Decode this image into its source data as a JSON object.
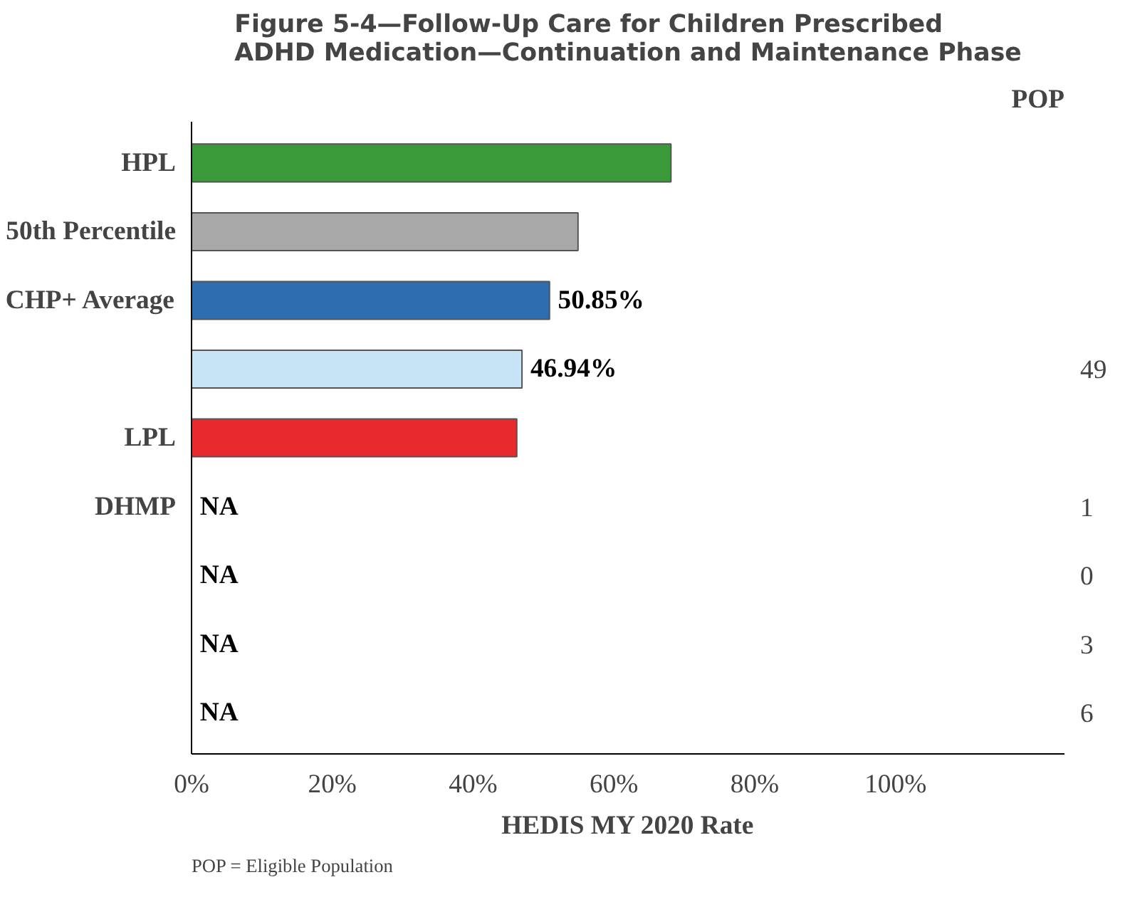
{
  "chart_data": {
    "type": "bar",
    "orientation": "horizontal",
    "title": "Figure 5-4—Follow-Up Care for Children Prescribed ADHD Medication—Continuation and Maintenance Phase",
    "xlabel": "HEDIS MY 2020 Rate",
    "y2label": "POP",
    "categories": [
      "HPL",
      "50th Percentile",
      "CHP+ Average",
      null,
      "LPL",
      "DHMP",
      null,
      null,
      null
    ],
    "y2_categories": [
      null,
      null,
      null,
      "49",
      null,
      "1",
      "0",
      "3",
      "6"
    ],
    "values": [
      68.1,
      54.9,
      50.85,
      46.94,
      46.2,
      null,
      null,
      null,
      null
    ],
    "colors": [
      "#3a9a3a",
      "#a8a8a8",
      "#2e6db0",
      "#c6e4f6",
      "#e8292e",
      "#000000",
      "#000000",
      "#000000",
      "#000000"
    ],
    "value_labels": [
      null,
      null,
      "50.85%",
      "46.94%",
      null,
      "NA",
      "NA",
      "NA",
      "NA"
    ],
    "xlim": [
      0,
      124
    ],
    "xticks": [
      {
        "value": 0,
        "label": "0%"
      },
      {
        "value": 20,
        "label": "20%"
      },
      {
        "value": 40,
        "label": "40%"
      },
      {
        "value": 60,
        "label": "60%"
      },
      {
        "value": 80,
        "label": "80%"
      },
      {
        "value": 100,
        "label": "100%"
      }
    ],
    "grid": false,
    "annotations": [
      "POP = Eligible Population"
    ]
  }
}
